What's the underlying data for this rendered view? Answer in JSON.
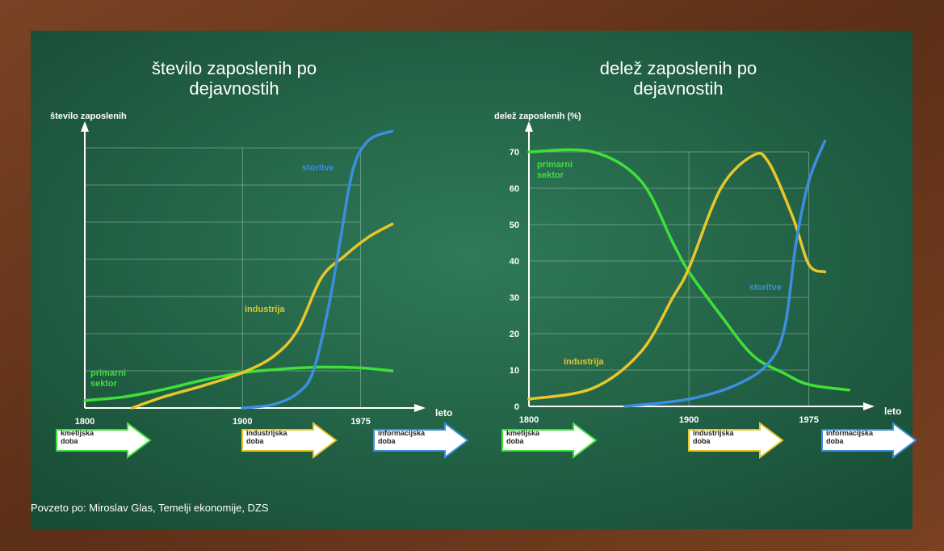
{
  "chart_data": [
    {
      "type": "line",
      "title": "število zaposlenih po dejavnostih",
      "y_label": "število zaposlenih",
      "x_label": "leto",
      "xlim": [
        1800,
        2010
      ],
      "xticks": [
        1800,
        1900,
        1975
      ],
      "ylim": [
        0,
        7.5
      ],
      "grid": true,
      "series": [
        {
          "name": "primarni sektor",
          "color": "#3fe03a",
          "x": [
            1800,
            1825,
            1850,
            1875,
            1900,
            1925,
            1950,
            1975,
            1995
          ],
          "values": [
            0.2,
            0.3,
            0.5,
            0.75,
            0.95,
            1.05,
            1.1,
            1.08,
            1.0
          ]
        },
        {
          "name": "industrija",
          "color": "#e8c62c",
          "x": [
            1830,
            1850,
            1875,
            1900,
            1920,
            1935,
            1950,
            1965,
            1980,
            1995
          ],
          "values": [
            0,
            0.3,
            0.6,
            0.95,
            1.4,
            2.1,
            3.5,
            4.1,
            4.6,
            4.95
          ]
        },
        {
          "name": "storitve",
          "color": "#3b8ee0",
          "x": [
            1900,
            1920,
            1935,
            1945,
            1955,
            1962,
            1970,
            1980,
            1995
          ],
          "values": [
            0,
            0.1,
            0.4,
            1.0,
            2.8,
            4.5,
            6.4,
            7.2,
            7.45
          ]
        }
      ],
      "eras": [
        "kmetijska doba",
        "industrijska doba",
        "informacijska doba"
      ]
    },
    {
      "type": "line",
      "title": "delež zaposlenih po dejavnostih",
      "y_label": "delež zaposlenih (%)",
      "x_label": "leto",
      "xlim": [
        1800,
        2010
      ],
      "xticks": [
        1800,
        1900,
        1975
      ],
      "ylim": [
        0,
        75
      ],
      "yticks": [
        0,
        10,
        20,
        30,
        40,
        50,
        60,
        70
      ],
      "grid": true,
      "series": [
        {
          "name": "primarni sektor",
          "color": "#3fe03a",
          "x": [
            1800,
            1840,
            1870,
            1890,
            1900,
            1920,
            1940,
            1960,
            1975,
            2000
          ],
          "values": [
            70,
            70,
            62,
            45,
            37,
            25,
            14,
            9,
            6,
            4.5
          ]
        },
        {
          "name": "industrija",
          "color": "#e8c62c",
          "x": [
            1800,
            1840,
            1870,
            1890,
            1900,
            1920,
            1940,
            1950,
            1965,
            1975,
            1985
          ],
          "values": [
            2,
            5,
            15,
            30,
            38,
            60,
            69,
            67,
            52,
            39,
            37
          ]
        },
        {
          "name": "storitve",
          "color": "#3b8ee0",
          "x": [
            1860,
            1900,
            1930,
            1950,
            1960,
            1967,
            1975,
            1985
          ],
          "values": [
            0,
            2,
            6,
            12,
            22,
            45,
            62,
            73
          ]
        }
      ],
      "eras": [
        "kmetijska doba",
        "industrijska doba",
        "informacijska doba"
      ]
    }
  ],
  "source": "Povzeto po: Miroslav Glas, Temelji ekonomije, DZS"
}
